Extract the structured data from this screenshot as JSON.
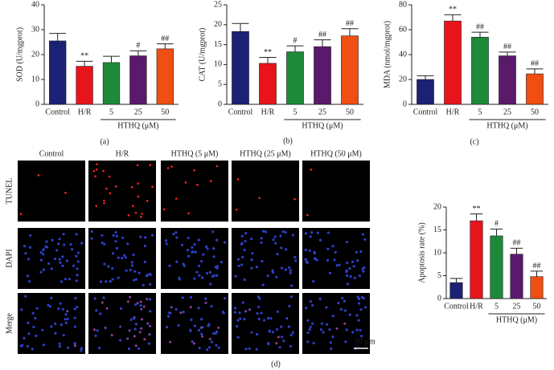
{
  "chart_data": [
    {
      "type": "bar",
      "ylabel": "SOD (U/mgprot)",
      "categories": [
        "Control",
        "H/R",
        "5",
        "25",
        "50"
      ],
      "group_label": "HTHQ (μM)",
      "values": [
        25.5,
        15.3,
        16.8,
        19.5,
        22.3
      ],
      "errors": [
        3,
        2,
        2.5,
        2,
        2
      ],
      "annotations": [
        null,
        "**",
        null,
        "#",
        "##"
      ],
      "colors": [
        "#1b2275",
        "#e8141c",
        "#1d8a3a",
        "#5a1a6b",
        "#f04e12"
      ],
      "ylim": [
        0,
        40
      ],
      "yticks": [
        0,
        10,
        20,
        30,
        40
      ]
    },
    {
      "type": "bar",
      "ylabel": "CAT (U/mgprot)",
      "categories": [
        "Control",
        "H/R",
        "5",
        "25",
        "50"
      ],
      "group_label": "HTHQ (μM)",
      "values": [
        18.3,
        10.3,
        13.2,
        14.5,
        17.2
      ],
      "errors": [
        2,
        1.5,
        1.5,
        1.7,
        1.8
      ],
      "annotations": [
        null,
        "**",
        "#",
        "##",
        "##"
      ],
      "colors": [
        "#1b2275",
        "#e8141c",
        "#1d8a3a",
        "#5a1a6b",
        "#f04e12"
      ],
      "ylim": [
        0,
        25
      ],
      "yticks": [
        0,
        5,
        10,
        15,
        20,
        25
      ]
    },
    {
      "type": "bar",
      "ylabel": "MDA (nmol/mgprot)",
      "categories": [
        "Control",
        "H/R",
        "5",
        "25",
        "50"
      ],
      "group_label": "HTHQ (μM)",
      "values": [
        20,
        67,
        54,
        39,
        24.5
      ],
      "errors": [
        3,
        5,
        4,
        3,
        4
      ],
      "annotations": [
        null,
        "**",
        "##",
        "##",
        "##"
      ],
      "colors": [
        "#1b2275",
        "#e8141c",
        "#1d8a3a",
        "#5a1a6b",
        "#f04e12"
      ],
      "ylim": [
        0,
        80
      ],
      "yticks": [
        0,
        20,
        40,
        60,
        80
      ]
    },
    {
      "type": "bar",
      "ylabel": "Apoptosis rate (%)",
      "categories": [
        "Control",
        "H/R",
        "5",
        "25",
        "50"
      ],
      "group_label": "HTHQ (μM)",
      "values": [
        3.5,
        17,
        13.7,
        9.7,
        4.8
      ],
      "errors": [
        0.9,
        1.5,
        1.5,
        1.3,
        1.2
      ],
      "annotations": [
        null,
        "**",
        "#",
        "##",
        "##"
      ],
      "colors": [
        "#1b2275",
        "#e8141c",
        "#1d8a3a",
        "#5a1a6b",
        "#f04e12"
      ],
      "ylim": [
        0,
        20
      ],
      "yticks": [
        0,
        5,
        10,
        15,
        20
      ]
    }
  ],
  "panel_labels": [
    "(a)",
    "(b)",
    "(c)",
    "(d)"
  ],
  "micrographs": {
    "columns": [
      "Control",
      "H/R",
      "HTHQ (5 μM)",
      "HTHQ (25 μM)",
      "HTHQ (50 μM)"
    ],
    "rows": [
      "TUNEL",
      "DAPI",
      "Merge"
    ],
    "scale_bar": "50 μm"
  }
}
